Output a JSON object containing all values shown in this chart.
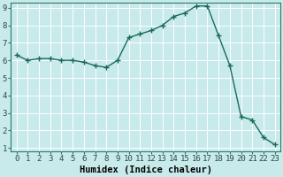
{
  "x": [
    0,
    1,
    2,
    3,
    4,
    5,
    6,
    7,
    8,
    9,
    10,
    11,
    12,
    13,
    14,
    15,
    16,
    17,
    18,
    19,
    20,
    21,
    22,
    23
  ],
  "y": [
    6.3,
    6.0,
    6.1,
    6.1,
    6.0,
    6.0,
    5.9,
    5.7,
    5.6,
    6.0,
    7.3,
    7.5,
    7.7,
    8.0,
    8.5,
    8.7,
    9.1,
    9.1,
    7.4,
    5.7,
    2.8,
    2.6,
    1.6,
    1.2
  ],
  "line_color": "#1a6b5a",
  "marker": "+",
  "markersize": 4,
  "markeredgewidth": 1.0,
  "linewidth": 1.0,
  "bg_color": "#c8eaea",
  "grid_color": "#ffffff",
  "grid_linewidth": 0.7,
  "xlabel": "Humidex (Indice chaleur)",
  "xlabel_fontsize": 7.5,
  "xlabel_fontweight": "bold",
  "tick_fontsize": 6.5,
  "xlim": [
    -0.5,
    23.5
  ],
  "ylim": [
    0.8,
    9.3
  ],
  "yticks": [
    1,
    2,
    3,
    4,
    5,
    6,
    7,
    8,
    9
  ],
  "xticks": [
    0,
    1,
    2,
    3,
    4,
    5,
    6,
    7,
    8,
    9,
    10,
    11,
    12,
    13,
    14,
    15,
    16,
    17,
    18,
    19,
    20,
    21,
    22,
    23
  ],
  "spine_color": "#2a7a6a"
}
